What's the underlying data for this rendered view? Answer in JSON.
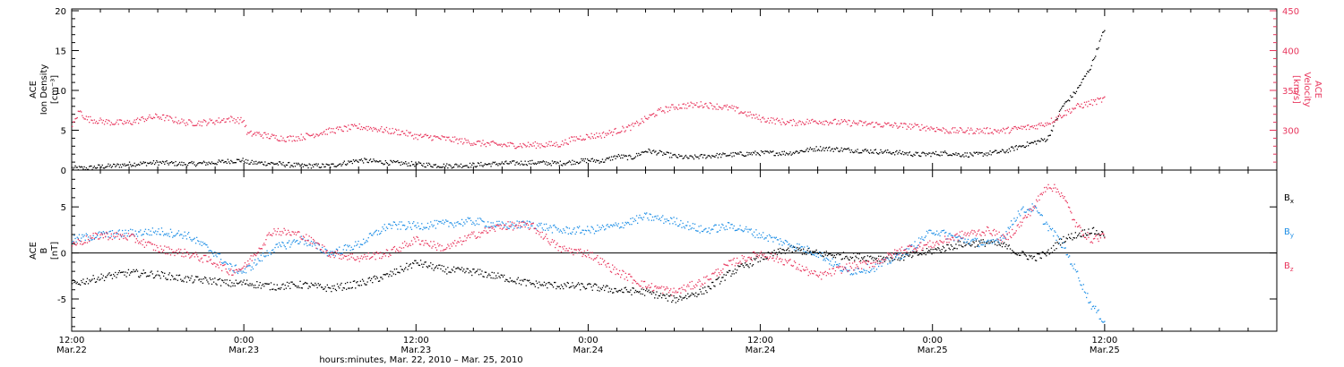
{
  "chart_data": [
    {
      "type": "scatter",
      "panel": "top",
      "ylabel_left": [
        "ACE",
        "Ion Density",
        "[cm⁻³]"
      ],
      "ylabel_right": [
        "ACE",
        "Velocity",
        "[km/s]"
      ],
      "ylim_left": [
        0,
        20
      ],
      "yticks_left": [
        0,
        5,
        10,
        15,
        20
      ],
      "ylim_right": [
        250,
        450
      ],
      "yticks_right": [
        300,
        350,
        400,
        450
      ],
      "series": [
        {
          "axis": "left",
          "color": "#000000",
          "x": [
            0,
            1,
            2,
            3,
            4,
            6,
            8,
            10,
            11,
            12,
            12.2,
            14,
            16,
            18,
            20,
            22,
            24,
            26,
            28,
            30,
            32,
            34,
            36,
            37,
            38,
            39,
            40,
            41,
            42,
            43,
            44,
            46,
            48,
            50,
            52,
            54,
            56,
            58,
            59,
            60,
            61,
            62,
            63,
            64,
            65,
            66,
            67,
            68,
            69,
            70,
            71,
            72
          ],
          "y": [
            0.3,
            0.3,
            0.5,
            0.6,
            0.8,
            1.0,
            0.8,
            1.0,
            1.2,
            1.3,
            1.0,
            0.9,
            0.6,
            0.6,
            1.3,
            1.0,
            0.8,
            0.6,
            0.7,
            0.9,
            1.0,
            0.9,
            1.3,
            1.2,
            1.8,
            1.6,
            2.5,
            2.2,
            1.8,
            1.6,
            1.8,
            2.0,
            2.2,
            2.2,
            2.8,
            2.6,
            2.4,
            2.2,
            2.0,
            2.1,
            2.2,
            2.0,
            2.0,
            2.2,
            2.4,
            3.0,
            3.5,
            4.0,
            8.0,
            10.0,
            13.0,
            18.0
          ]
        },
        {
          "axis": "right",
          "color": "#e8365d",
          "x": [
            0,
            0.5,
            1,
            2,
            3,
            4,
            5,
            6,
            7,
            8,
            9,
            10,
            11,
            12,
            12.2,
            13,
            14,
            15,
            16,
            18,
            20,
            21,
            22,
            23,
            24,
            25,
            26,
            28,
            30,
            32,
            34,
            35,
            36,
            37,
            38,
            39,
            40,
            41,
            42,
            43,
            44,
            46,
            48,
            50,
            52,
            54,
            56,
            58,
            59,
            60,
            61,
            62,
            63,
            64,
            65,
            66,
            67,
            68,
            69,
            70,
            71,
            72
          ],
          "y": [
            305,
            325,
            315,
            312,
            310,
            310,
            315,
            318,
            314,
            310,
            310,
            312,
            315,
            312,
            296,
            296,
            292,
            290,
            292,
            300,
            305,
            303,
            300,
            298,
            293,
            292,
            290,
            285,
            282,
            282,
            283,
            290,
            293,
            295,
            300,
            305,
            315,
            325,
            330,
            332,
            333,
            328,
            315,
            310,
            312,
            310,
            308,
            306,
            305,
            303,
            300,
            300,
            300,
            300,
            300,
            303,
            305,
            310,
            320,
            330,
            335,
            340
          ]
        }
      ]
    },
    {
      "type": "scatter",
      "panel": "bottom",
      "ylabel_left": [
        "ACE",
        "B",
        "[nT]"
      ],
      "ylim": [
        -8.5,
        9
      ],
      "yticks": [
        -5,
        0,
        5
      ],
      "zero_line": true,
      "legend": [
        "B",
        "B",
        "B"
      ],
      "legend_subscripts": [
        "x",
        "y",
        "z"
      ],
      "legend_placement": "right",
      "series": [
        {
          "name": "Bx",
          "color": "#000000",
          "x": [
            0,
            2,
            4,
            6,
            8,
            10,
            11,
            12,
            14,
            16,
            18,
            20,
            22,
            24,
            26,
            28,
            30,
            32,
            34,
            36,
            38,
            40,
            42,
            44,
            46,
            48,
            50,
            52,
            54,
            56,
            58,
            60,
            62,
            64,
            65,
            66,
            67,
            68,
            69,
            70,
            71,
            72
          ],
          "y": [
            -3.3,
            -2.6,
            -2.1,
            -2.3,
            -2.8,
            -3.0,
            -3.3,
            -3.2,
            -3.6,
            -3.4,
            -3.8,
            -3.3,
            -2.4,
            -1.0,
            -1.8,
            -2.0,
            -2.6,
            -3.3,
            -3.5,
            -3.6,
            -4.0,
            -4.2,
            -5.0,
            -4.1,
            -2.0,
            -0.5,
            0.5,
            0.0,
            -0.3,
            -0.5,
            -0.4,
            0.3,
            1.0,
            1.2,
            0.8,
            0.0,
            -0.5,
            0.0,
            1.5,
            2.0,
            2.5,
            2.0
          ]
        },
        {
          "name": "By",
          "color": "#1f8fe6",
          "x": [
            0,
            2,
            4,
            6,
            8,
            10,
            11,
            12,
            14,
            16,
            18,
            20,
            22,
            24,
            26,
            28,
            30,
            32,
            34,
            36,
            38,
            40,
            42,
            44,
            46,
            48,
            50,
            52,
            54,
            56,
            58,
            60,
            62,
            64,
            65,
            66,
            67,
            68,
            69,
            70,
            71,
            72
          ],
          "y": [
            1.5,
            2.0,
            2.2,
            2.4,
            2.0,
            0.0,
            -1.5,
            -2.0,
            0.5,
            1.5,
            0.0,
            1.0,
            3.0,
            3.0,
            3.2,
            3.5,
            3.0,
            3.2,
            2.5,
            2.5,
            3.0,
            4.0,
            3.5,
            2.5,
            3.0,
            2.0,
            1.0,
            0.0,
            -2.0,
            -1.5,
            0.0,
            2.5,
            1.5,
            1.0,
            2.0,
            4.5,
            5.0,
            3.0,
            1.0,
            -2.0,
            -5.5,
            -7.5
          ]
        },
        {
          "name": "Bz",
          "color": "#e8365d",
          "x": [
            0,
            2,
            4,
            6,
            8,
            10,
            11,
            12,
            14,
            16,
            18,
            20,
            22,
            24,
            26,
            28,
            30,
            32,
            34,
            36,
            38,
            40,
            42,
            44,
            46,
            48,
            50,
            52,
            54,
            56,
            58,
            60,
            62,
            64,
            65,
            66,
            67,
            68,
            69,
            70,
            71,
            72
          ],
          "y": [
            1.0,
            2.0,
            1.8,
            0.5,
            0.0,
            -1.0,
            -2.0,
            -1.5,
            2.5,
            2.0,
            0.0,
            -0.5,
            0.0,
            1.5,
            0.5,
            2.0,
            3.0,
            3.0,
            0.5,
            0.0,
            -2.0,
            -3.5,
            -4.2,
            -3.0,
            -1.0,
            0.0,
            -1.0,
            -2.5,
            -1.5,
            -1.0,
            0.5,
            1.0,
            2.0,
            2.5,
            1.5,
            3.0,
            5.0,
            7.5,
            6.5,
            3.0,
            1.5,
            2.0
          ]
        }
      ]
    }
  ],
  "xaxis": {
    "xlim_hours": [
      0,
      84
    ],
    "major_ticks": [
      {
        "hour": 0,
        "time": "12:00",
        "date": "Mar.22"
      },
      {
        "hour": 12,
        "time": "0:00",
        "date": "Mar.23"
      },
      {
        "hour": 24,
        "time": "12:00",
        "date": "Mar.23"
      },
      {
        "hour": 36,
        "time": "0:00",
        "date": "Mar.24"
      },
      {
        "hour": 48,
        "time": "12:00",
        "date": "Mar.24"
      },
      {
        "hour": 60,
        "time": "0:00",
        "date": "Mar.25"
      },
      {
        "hour": 72,
        "time": "12:00",
        "date": "Mar.25"
      }
    ],
    "minor_tick_hours": 2,
    "label": "hours:minutes, Mar. 22, 2010 – Mar. 25, 2010"
  },
  "colors": {
    "density": "#000000",
    "velocity": "#e8365d",
    "bx": "#000000",
    "by": "#1f8fe6",
    "bz": "#e8365d"
  }
}
